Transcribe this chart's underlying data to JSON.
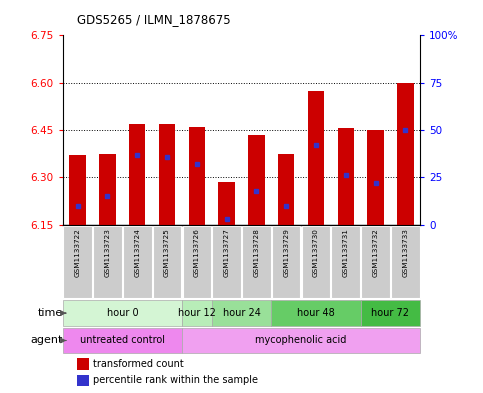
{
  "title": "GDS5265 / ILMN_1878675",
  "samples": [
    "GSM1133722",
    "GSM1133723",
    "GSM1133724",
    "GSM1133725",
    "GSM1133726",
    "GSM1133727",
    "GSM1133728",
    "GSM1133729",
    "GSM1133730",
    "GSM1133731",
    "GSM1133732",
    "GSM1133733"
  ],
  "transformed_counts": [
    6.37,
    6.375,
    6.47,
    6.47,
    6.46,
    6.285,
    6.435,
    6.375,
    6.575,
    6.455,
    6.45,
    6.6
  ],
  "percentile_ranks": [
    10,
    15,
    37,
    36,
    32,
    3,
    18,
    10,
    42,
    26,
    22,
    50
  ],
  "y_min": 6.15,
  "y_max": 6.75,
  "y_ticks": [
    6.15,
    6.3,
    6.45,
    6.6,
    6.75
  ],
  "right_y_ticks": [
    0,
    25,
    50,
    75,
    100
  ],
  "bar_color": "#cc0000",
  "blue_color": "#3333cc",
  "bar_width": 0.55,
  "time_groups": [
    {
      "label": "hour 0",
      "start": 0,
      "end": 3,
      "color": "#d4f5d4"
    },
    {
      "label": "hour 12",
      "start": 4,
      "end": 4,
      "color": "#b8edb8"
    },
    {
      "label": "hour 24",
      "start": 5,
      "end": 6,
      "color": "#99e099"
    },
    {
      "label": "hour 48",
      "start": 7,
      "end": 9,
      "color": "#66cc66"
    },
    {
      "label": "hour 72",
      "start": 10,
      "end": 11,
      "color": "#44bb44"
    }
  ],
  "agent_untreated_color": "#ee88ee",
  "agent_myco_color": "#f0a0f0",
  "legend_red": "transformed count",
  "legend_blue": "percentile rank within the sample",
  "bg_color": "#ffffff",
  "sample_box_color": "#cccccc",
  "grid_dotted_color": "#000000"
}
